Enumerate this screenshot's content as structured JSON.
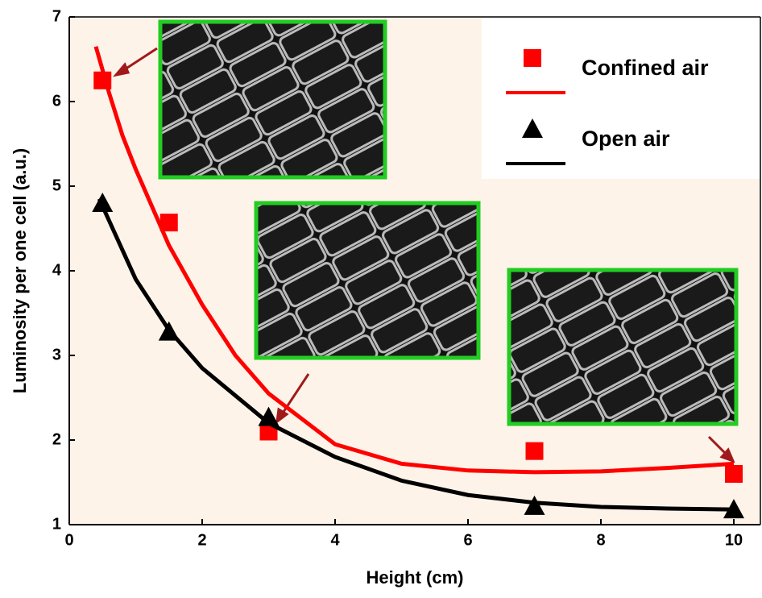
{
  "chart_data": {
    "type": "scatter",
    "x_label": "Height (cm)",
    "y_label": "Luminosity per one cell (a.u.)",
    "xlim": [
      0,
      10.4
    ],
    "xticks": [
      0,
      2,
      4,
      6,
      8,
      10
    ],
    "ylim": [
      1,
      7
    ],
    "yticks": [
      1,
      2,
      3,
      4,
      5,
      6,
      7
    ],
    "series": [
      {
        "name": "Confined air",
        "color": "#ff0000",
        "marker": "square",
        "x": [
          0.5,
          1.5,
          3,
          7,
          10
        ],
        "values": [
          6.25,
          4.57,
          2.1,
          1.87,
          1.6
        ],
        "fit_x": [
          0.4,
          0.6,
          0.8,
          1,
          1.5,
          2,
          2.5,
          3,
          4,
          5,
          6,
          7,
          8,
          9,
          10
        ],
        "fit_values": [
          6.65,
          6.1,
          5.6,
          5.2,
          4.3,
          3.6,
          3.0,
          2.55,
          1.95,
          1.72,
          1.64,
          1.62,
          1.63,
          1.67,
          1.72
        ]
      },
      {
        "name": "Open air",
        "color": "#000000",
        "marker": "triangle",
        "x": [
          0.5,
          1.5,
          3,
          7,
          10
        ],
        "values": [
          4.8,
          3.28,
          2.27,
          1.22,
          1.18
        ],
        "fit_x": [
          0.45,
          1,
          1.5,
          2,
          3,
          4,
          5,
          6,
          7,
          8,
          9,
          10
        ],
        "fit_values": [
          4.85,
          3.9,
          3.3,
          2.85,
          2.2,
          1.8,
          1.52,
          1.35,
          1.26,
          1.21,
          1.19,
          1.18
        ]
      }
    ]
  }
}
